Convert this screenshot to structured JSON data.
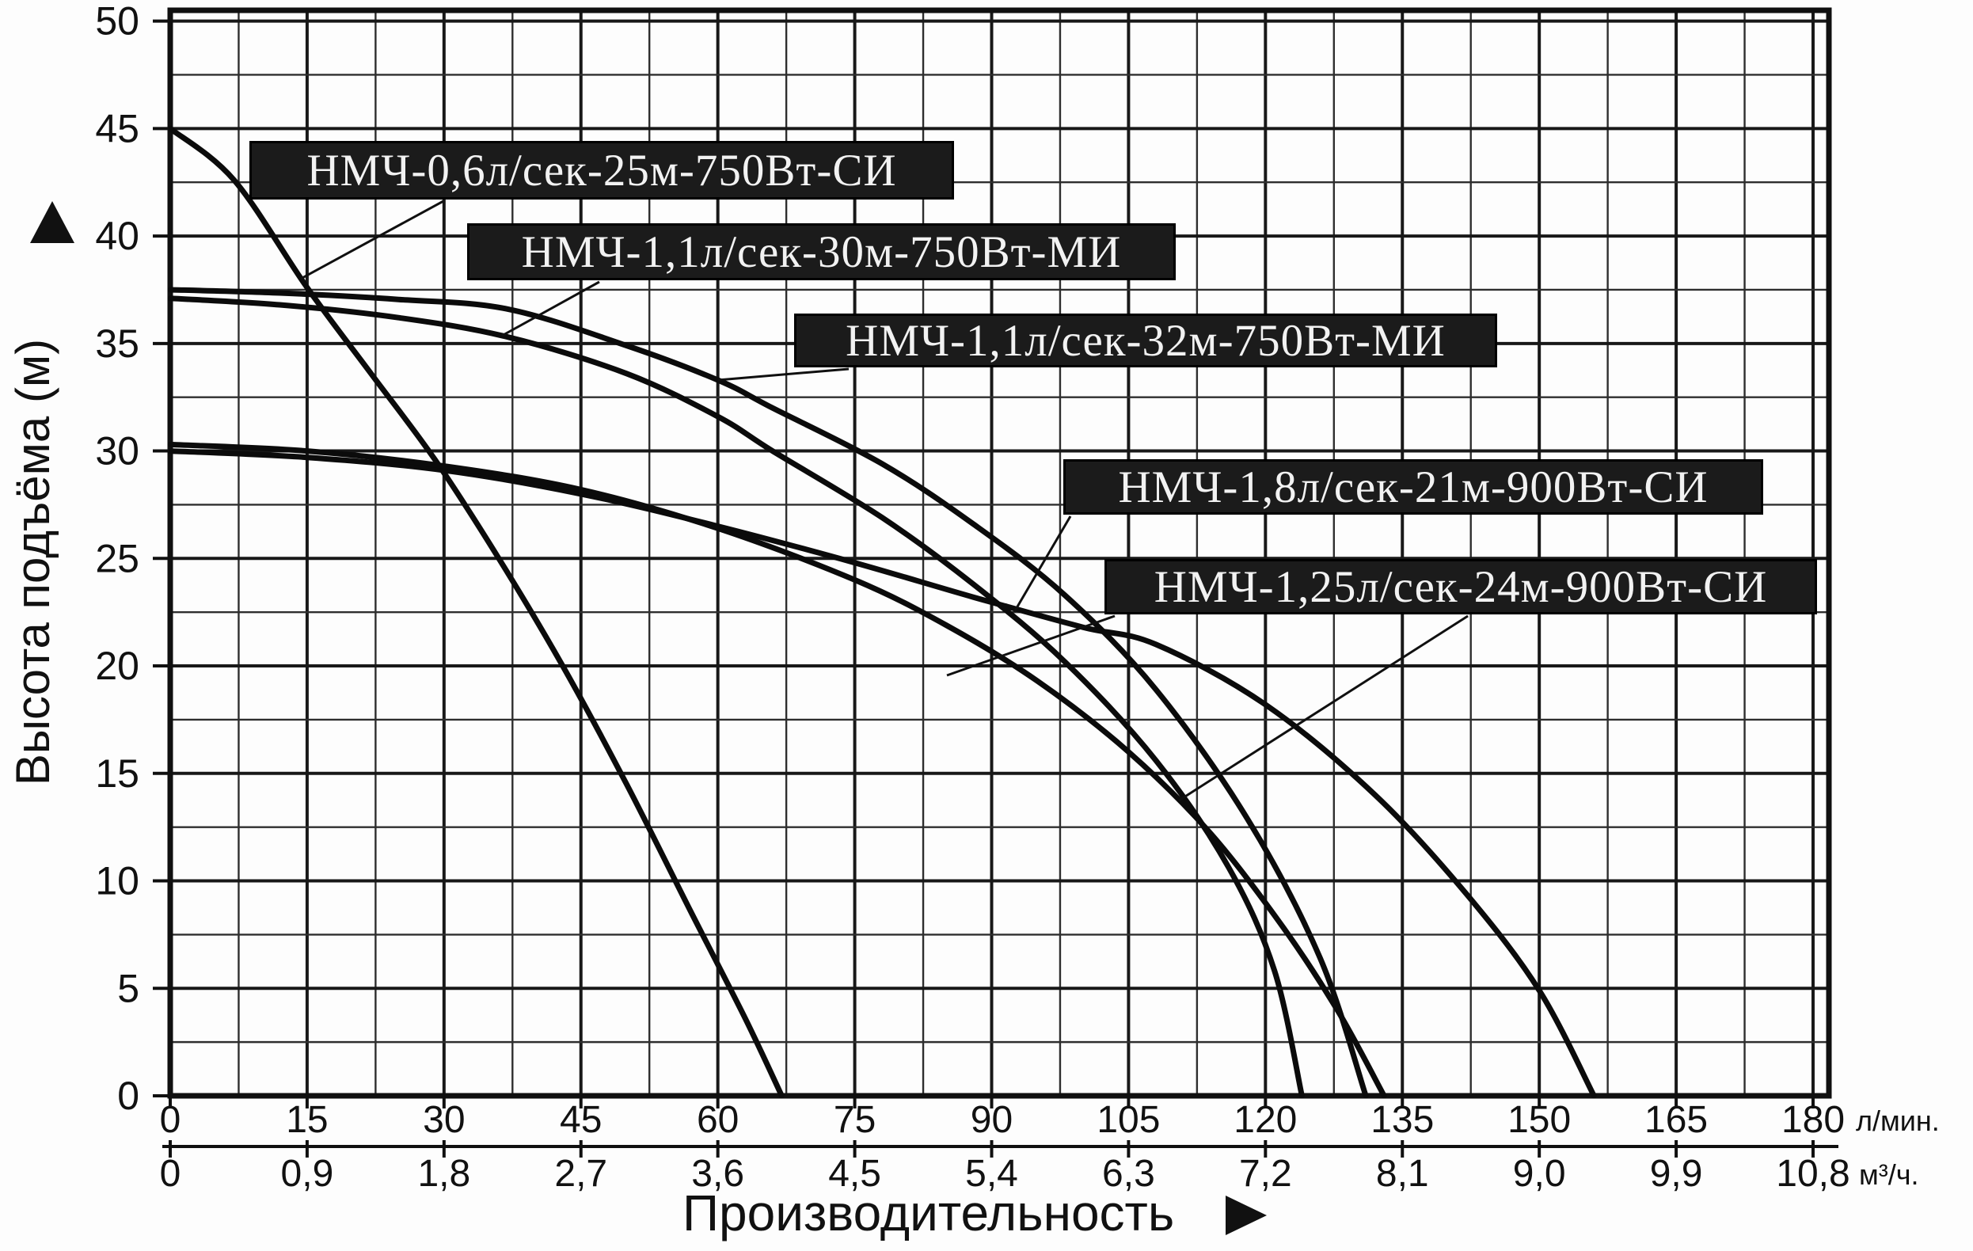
{
  "page": {
    "background": "#ffffff"
  },
  "colors": {
    "curve": "#0b0b0b",
    "grid_minor": "#2e2e2e",
    "grid_major": "#181818",
    "border": "#101010",
    "label_bg": "#1b1b1b",
    "label_text": "#f2f2f2",
    "text": "#111111"
  },
  "axes": {
    "y_title": "Высота подъёма (м)",
    "x_title": "Производительность",
    "x_unit_primary": "л/мин.",
    "x_unit_secondary": "м³/ч.",
    "y_ticks": [
      "0",
      "5",
      "10",
      "15",
      "20",
      "25",
      "30",
      "35",
      "40",
      "45",
      "50"
    ],
    "x_ticks_primary": [
      "0",
      "15",
      "30",
      "45",
      "60",
      "75",
      "90",
      "105",
      "120",
      "135",
      "150",
      "165",
      "180"
    ],
    "x_ticks_secondary": [
      "0",
      "0,9",
      "1,8",
      "2,7",
      "3,6",
      "4,5",
      "5,4",
      "6,3",
      "7,2",
      "8,1",
      "9,0",
      "9,9",
      "10,8"
    ]
  },
  "chart_data": {
    "type": "line",
    "title": "",
    "xlabel": "Производительность",
    "ylabel": "Высота подъёма (м)",
    "x_units": [
      "л/мин.",
      "м³/ч."
    ],
    "xlim": [
      0,
      180
    ],
    "ylim": [
      0,
      50
    ],
    "x_tick_step": 15,
    "y_tick_step": 5,
    "grid": {
      "minor_x": 7.5,
      "minor_y": 2.5,
      "major_x": 15,
      "major_y": 5,
      "visible": true
    },
    "legend_position": "inline-callouts",
    "series": [
      {
        "name": "НМЧ-0,6л/сек-25м-750Вт-СИ",
        "points": [
          [
            0,
            45
          ],
          [
            7,
            42.6
          ],
          [
            15,
            37.6
          ],
          [
            22,
            33.6
          ],
          [
            29,
            29.6
          ],
          [
            36,
            25
          ],
          [
            43,
            20
          ],
          [
            50,
            14.5
          ],
          [
            57,
            8.6
          ],
          [
            63,
            3.6
          ],
          [
            67,
            0
          ]
        ]
      },
      {
        "name": "НМЧ-1,1л/сек-30м-750Вт-МИ",
        "points": [
          [
            0,
            37.1
          ],
          [
            12,
            36.8
          ],
          [
            25,
            36.2
          ],
          [
            37,
            35.3
          ],
          [
            50,
            33.6
          ],
          [
            60,
            31.6
          ],
          [
            66,
            30
          ],
          [
            78,
            26.9
          ],
          [
            88,
            23.8
          ],
          [
            98,
            20.2
          ],
          [
            108,
            15.6
          ],
          [
            116,
            10.6
          ],
          [
            121,
            5.8
          ],
          [
            124,
            0
          ]
        ]
      },
      {
        "name": "НМЧ-1,1л/сек-32м-750Вт-МИ",
        "points": [
          [
            0,
            37.5
          ],
          [
            12,
            37.35
          ],
          [
            25,
            37.05
          ],
          [
            37,
            36.6
          ],
          [
            50,
            34.9
          ],
          [
            60,
            33.3
          ],
          [
            66,
            32
          ],
          [
            78,
            29.4
          ],
          [
            88,
            26.6
          ],
          [
            98,
            23.3
          ],
          [
            108,
            18.9
          ],
          [
            118,
            12.9
          ],
          [
            126,
            6.4
          ],
          [
            131,
            0
          ]
        ]
      },
      {
        "name": "НМЧ-1,8л/сек-21м-900Вт-СИ",
        "points": [
          [
            0,
            30
          ],
          [
            15,
            29.7
          ],
          [
            30,
            29.1
          ],
          [
            45,
            28
          ],
          [
            60,
            26.5
          ],
          [
            75,
            24.8
          ],
          [
            88,
            23.2
          ],
          [
            100,
            21.8
          ],
          [
            108,
            21
          ],
          [
            120,
            18.2
          ],
          [
            132,
            14
          ],
          [
            142,
            9.4
          ],
          [
            150,
            4.9
          ],
          [
            156,
            0
          ]
        ]
      },
      {
        "name": "НМЧ-1,25л/сек-24м-900Вт-СИ",
        "points": [
          [
            0,
            30.3
          ],
          [
            15,
            30
          ],
          [
            30,
            29.3
          ],
          [
            45,
            28.2
          ],
          [
            60,
            26.4
          ],
          [
            75,
            24
          ],
          [
            85,
            21.9
          ],
          [
            95,
            19.3
          ],
          [
            105,
            16
          ],
          [
            114,
            12.2
          ],
          [
            122,
            7.8
          ],
          [
            128,
            3.9
          ],
          [
            133,
            0
          ]
        ]
      }
    ]
  }
}
